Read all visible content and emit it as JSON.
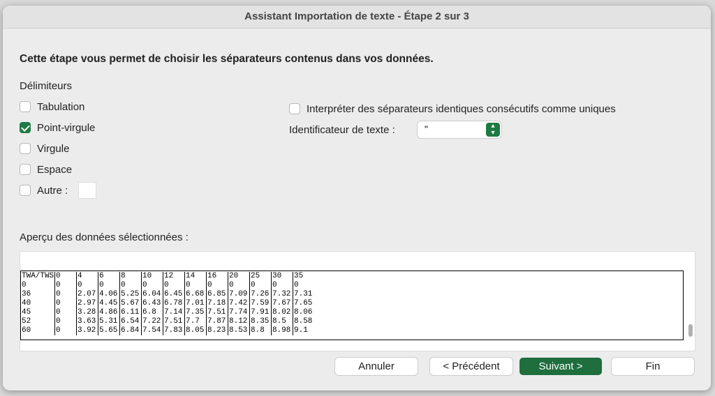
{
  "window": {
    "title": "Assistant Importation de texte - Étape 2 sur 3"
  },
  "instruction": "Cette étape vous permet de choisir les séparateurs contenus dans vos données.",
  "delimiters": {
    "heading": "Délimiteurs",
    "options": [
      {
        "label": "Tabulation",
        "checked": false
      },
      {
        "label": "Point-virgule",
        "checked": true
      },
      {
        "label": "Virgule",
        "checked": false
      },
      {
        "label": "Espace",
        "checked": false
      },
      {
        "label": "Autre :",
        "checked": false
      }
    ]
  },
  "consecutive": {
    "label": "Interpréter des séparateurs identiques consécutifs comme uniques",
    "checked": false
  },
  "text_qualifier": {
    "label": "Identificateur de texte :",
    "value": "\""
  },
  "preview": {
    "heading": "Aperçu des données sélectionnées :",
    "rows": [
      [
        "TWA/TWS",
        "0",
        "4",
        "6",
        "8",
        "10",
        "12",
        "14",
        "16",
        "20",
        "25",
        "30",
        "35"
      ],
      [
        "0",
        "0",
        "0",
        "0",
        "0",
        "0",
        "0",
        "0",
        "0",
        "0",
        "0",
        "0",
        "0"
      ],
      [
        "36",
        "0",
        "2.07",
        "4.06",
        "5.25",
        "6.04",
        "6.45",
        "6.68",
        "6.85",
        "7.09",
        "7.26",
        "7.32",
        "7.31"
      ],
      [
        "40",
        "0",
        "2.97",
        "4.45",
        "5.67",
        "6.43",
        "6.78",
        "7.01",
        "7.18",
        "7.42",
        "7.59",
        "7.67",
        "7.65"
      ],
      [
        "45",
        "0",
        "3.28",
        "4.86",
        "6.11",
        "6.8",
        "7.14",
        "7.35",
        "7.51",
        "7.74",
        "7.91",
        "8.02",
        "8.06"
      ],
      [
        "52",
        "0",
        "3.63",
        "5.31",
        "6.54",
        "7.22",
        "7.51",
        "7.7",
        "7.87",
        "8.12",
        "8.35",
        "8.5",
        "8.58"
      ],
      [
        "60",
        "0",
        "3.92",
        "5.65",
        "6.84",
        "7.54",
        "7.83",
        "8.05",
        "8.23",
        "8.53",
        "8.8",
        "8.98",
        "9.1"
      ]
    ]
  },
  "buttons": [
    "Annuler",
    "< Précédent",
    "Suivant >",
    "Fin"
  ]
}
